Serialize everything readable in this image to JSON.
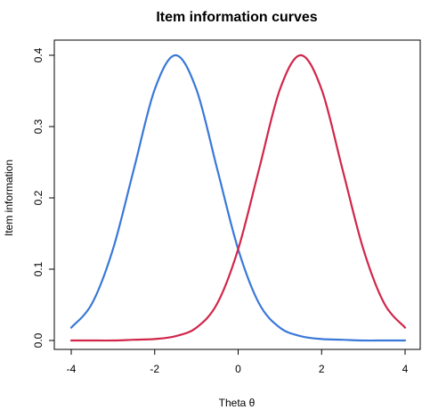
{
  "chart_data": {
    "type": "line",
    "title": "Item information curves",
    "xlabel": "Theta θ",
    "ylabel": "Item information",
    "xlim": [
      -4,
      4
    ],
    "ylim": [
      0,
      0.4
    ],
    "x_ticks": [
      -4,
      -2,
      0,
      2,
      4
    ],
    "x_tick_labels": [
      "-4",
      "-2",
      "0",
      "2",
      "4"
    ],
    "y_ticks": [
      0.0,
      0.1,
      0.2,
      0.3,
      0.4
    ],
    "y_tick_labels": [
      "0.0",
      "0.1",
      "0.2",
      "0.3",
      "0.4"
    ],
    "grid": false,
    "legend": "none",
    "x": [
      -4.0,
      -3.5,
      -3.0,
      -2.5,
      -2.0,
      -1.5,
      -1.0,
      -0.5,
      0.0,
      0.5,
      1.0,
      1.5,
      2.0,
      2.5,
      3.0,
      3.5,
      4.0
    ],
    "series": [
      {
        "color": "#3a78d8",
        "values": [
          0.018,
          0.052,
          0.128,
          0.24,
          0.352,
          0.4,
          0.352,
          0.24,
          0.128,
          0.052,
          0.018,
          0.006,
          0.002,
          0.001,
          0.0,
          0.0,
          0.0
        ]
      },
      {
        "color": "#d1264a",
        "values": [
          0.0,
          0.0,
          0.0,
          0.001,
          0.002,
          0.006,
          0.018,
          0.052,
          0.128,
          0.24,
          0.352,
          0.4,
          0.352,
          0.24,
          0.128,
          0.052,
          0.018
        ]
      }
    ]
  }
}
